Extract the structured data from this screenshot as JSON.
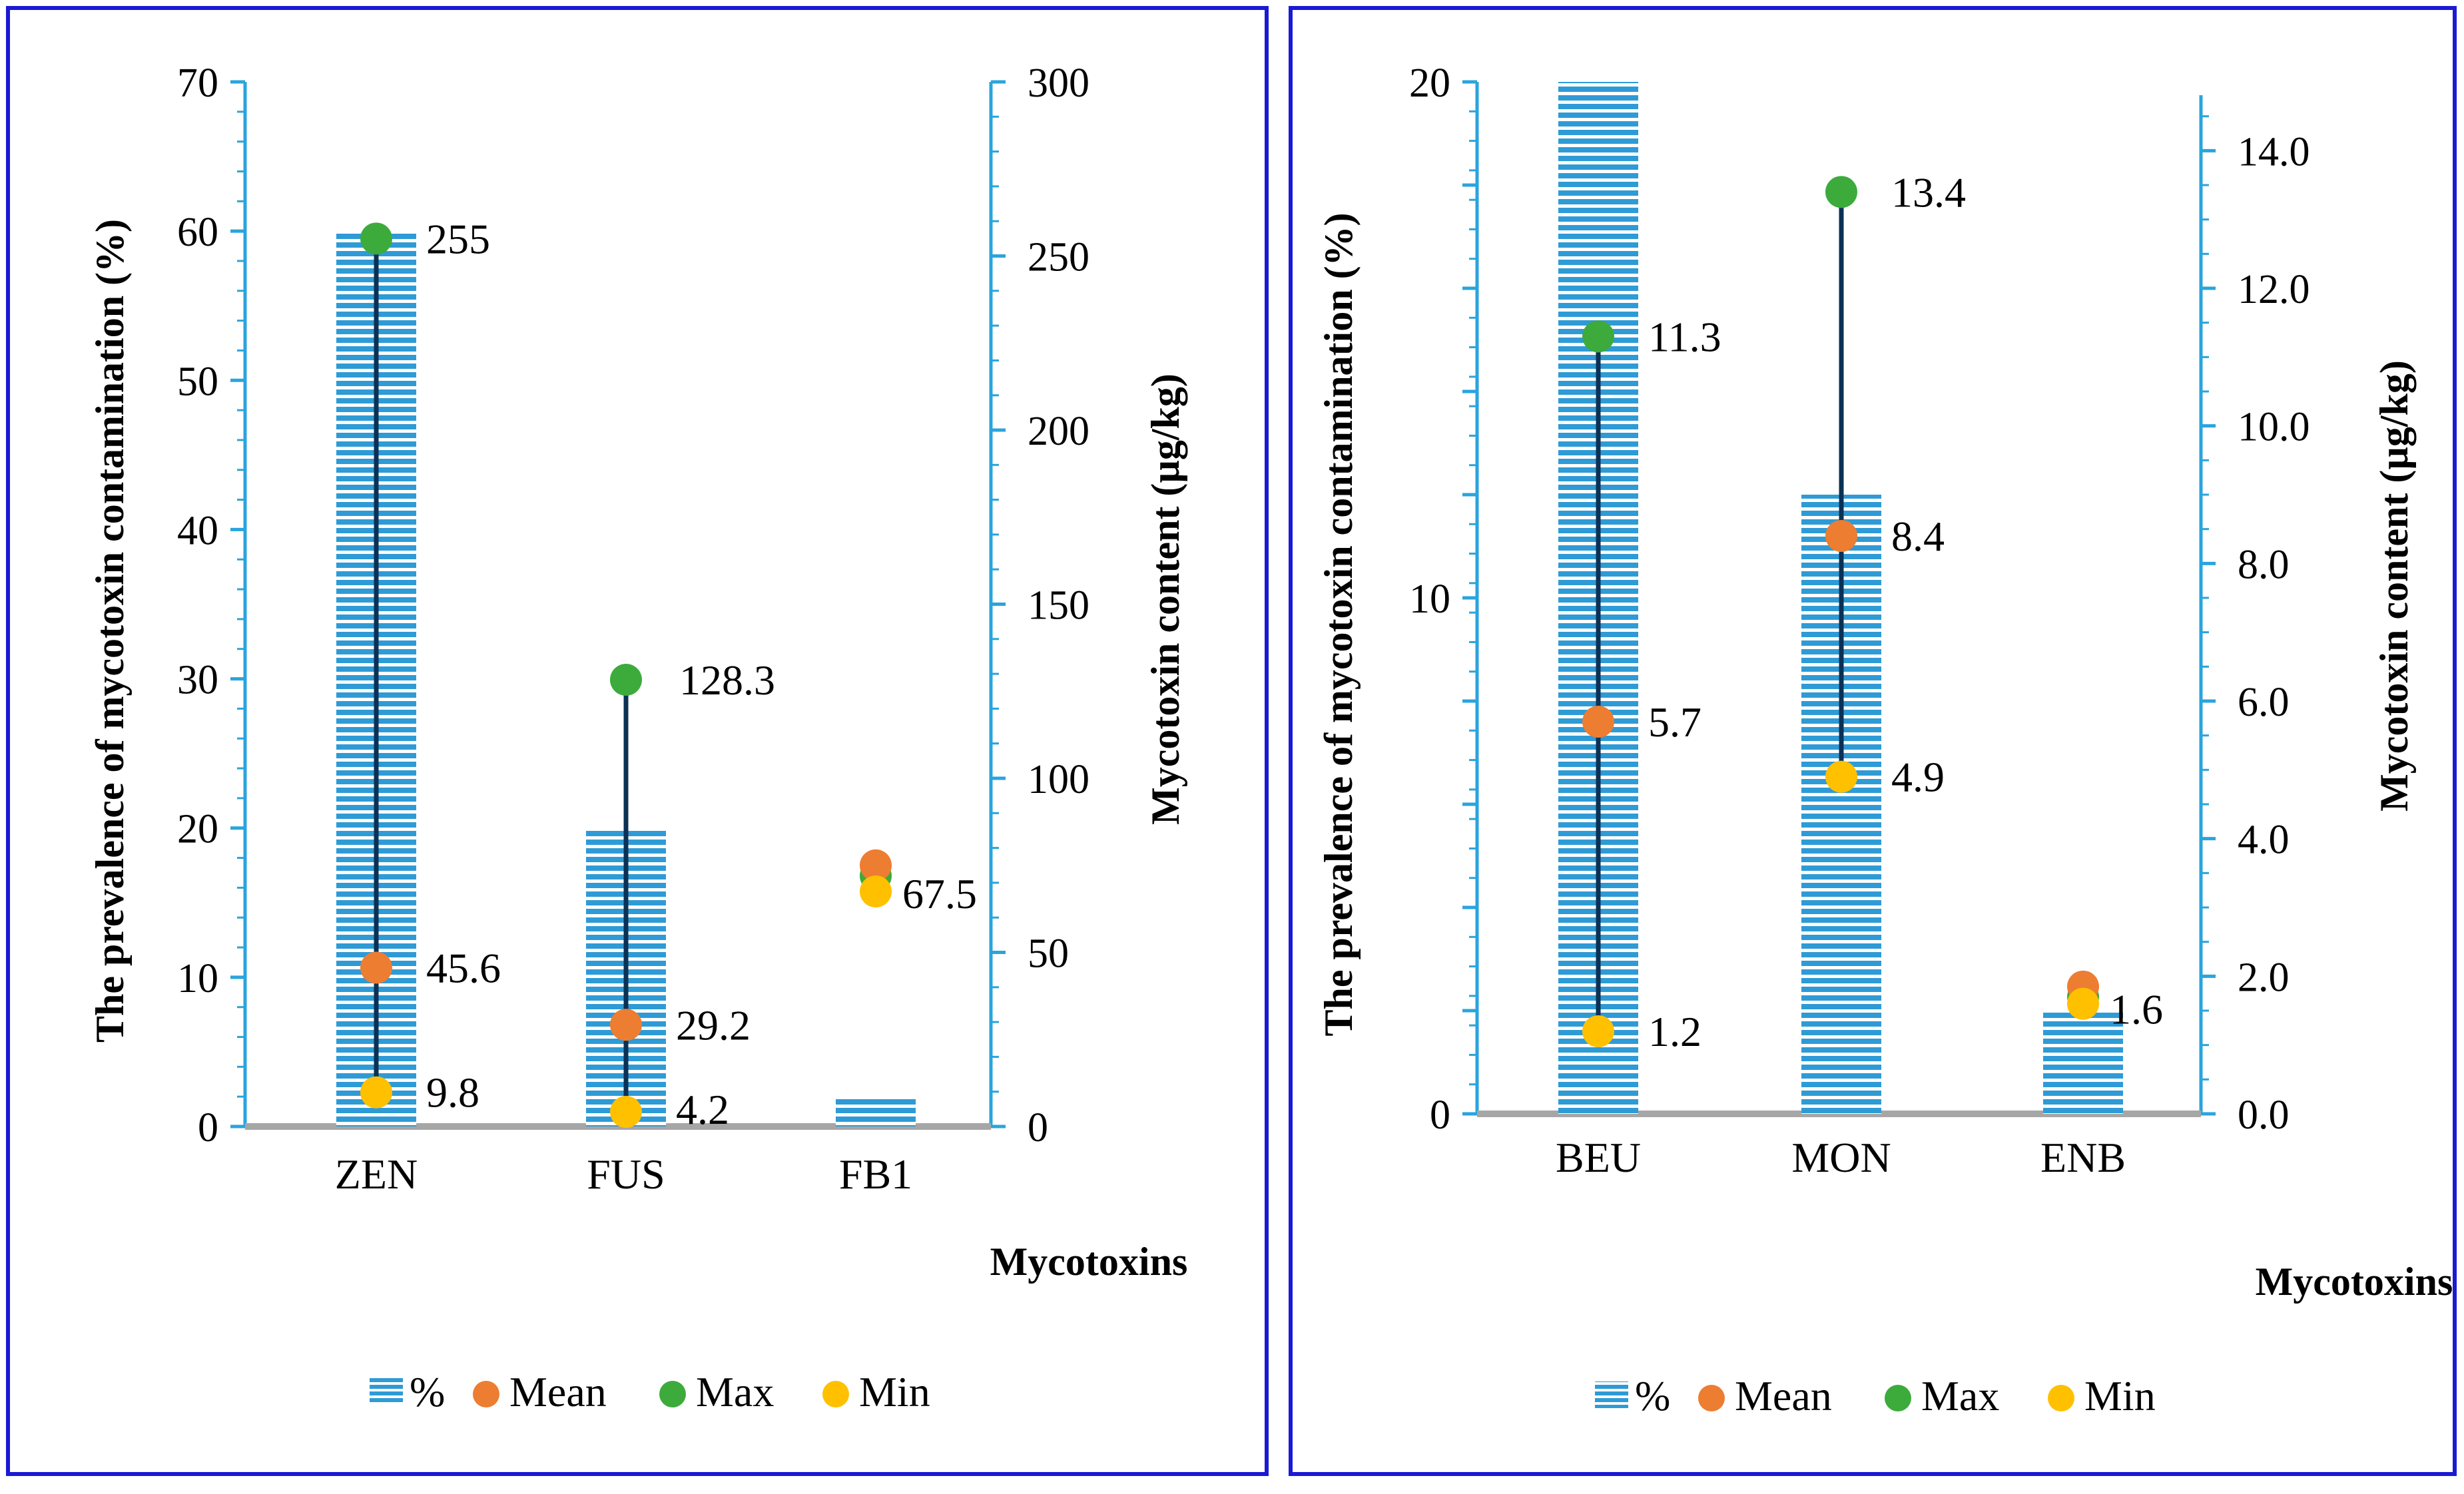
{
  "colors": {
    "frame": "#1a1ad4",
    "axis": "#2aa4dd",
    "baseline": "#a6a6a6",
    "bar": "#2e9bd6",
    "line": "#0b3155",
    "mean": "#ed7d31",
    "max": "#3cab3c",
    "min": "#ffc000"
  },
  "legend": {
    "bar": "%",
    "mean": "Mean",
    "max": "Max",
    "min": "Min"
  },
  "chart_data": [
    {
      "type": "bar",
      "categories": [
        "ZEN",
        "FUS",
        "FB1"
      ],
      "xlabel": "Mycotoxins",
      "ylabel": "The prevalence of mycotoxin contamination (%)",
      "ylim": [
        0,
        70
      ],
      "yticks": [
        0,
        10,
        20,
        30,
        40,
        50,
        60,
        70
      ],
      "ytick_labels": [
        "0",
        "10",
        "20",
        "30",
        "40",
        "50",
        "60",
        "70"
      ],
      "y2label": "Mycotoxin content (µg/kg)",
      "y2lim": [
        0,
        300
      ],
      "y2ticks": [
        0,
        50,
        100,
        150,
        200,
        250,
        300
      ],
      "y2tick_labels": [
        "0",
        "50",
        "100",
        "150",
        "200",
        "250",
        "300"
      ],
      "series": [
        {
          "name": "%",
          "axis": "left",
          "values": [
            60,
            20,
            2
          ]
        },
        {
          "name": "Mean",
          "axis": "right",
          "values": [
            45.6,
            29.2,
            75
          ]
        },
        {
          "name": "Max",
          "axis": "right",
          "values": [
            255,
            128.3,
            72
          ]
        },
        {
          "name": "Min",
          "axis": "right",
          "values": [
            9.8,
            4.2,
            67.5
          ]
        }
      ],
      "labels": [
        {
          "category": "ZEN",
          "value": 255,
          "text": "255"
        },
        {
          "category": "ZEN",
          "value": 45.6,
          "text": "45.6"
        },
        {
          "category": "ZEN",
          "value": 9.8,
          "text": "9.8"
        },
        {
          "category": "FUS",
          "value": 128.3,
          "text": "128.3"
        },
        {
          "category": "FUS",
          "value": 29.2,
          "text": "29.2"
        },
        {
          "category": "FUS",
          "value": 4.2,
          "text": "4.2"
        },
        {
          "category": "FB1",
          "value": 67.5,
          "text": "67.5"
        }
      ]
    },
    {
      "type": "bar",
      "categories": [
        "BEU",
        "MON",
        "ENB"
      ],
      "xlabel": "Mycotoxins",
      "ylabel": "The prevalence of mycotoxin contamination (%)",
      "ylim": [
        0,
        20
      ],
      "yticks": [
        0,
        2,
        4,
        6,
        8,
        10,
        12,
        14,
        16,
        18,
        20
      ],
      "ytick_labels": [
        "0",
        "",
        "",
        "",
        "",
        "10",
        "",
        "",
        "",
        "",
        "20"
      ],
      "y2label": "Mycotoxin content (µg/kg)",
      "y2lim": [
        0,
        15
      ],
      "y2ticks": [
        0,
        2,
        4,
        6,
        8,
        10,
        12,
        14
      ],
      "y2tick_labels": [
        "0.0",
        "2.0",
        "4.0",
        "6.0",
        "8.0",
        "10.0",
        "12.0",
        "14.0"
      ],
      "series": [
        {
          "name": "%",
          "axis": "left",
          "values": [
            20,
            12,
            2
          ]
        },
        {
          "name": "Mean",
          "axis": "right",
          "values": [
            5.7,
            8.4,
            1.85
          ]
        },
        {
          "name": "Max",
          "axis": "right",
          "values": [
            11.3,
            13.4,
            1.7
          ]
        },
        {
          "name": "Min",
          "axis": "right",
          "values": [
            1.2,
            4.9,
            1.6
          ]
        }
      ],
      "labels": [
        {
          "category": "BEU",
          "value": 11.3,
          "text": "11.3"
        },
        {
          "category": "BEU",
          "value": 5.7,
          "text": "5.7"
        },
        {
          "category": "BEU",
          "value": 1.2,
          "text": "1.2"
        },
        {
          "category": "MON",
          "value": 13.4,
          "text": "13.4"
        },
        {
          "category": "MON",
          "value": 8.4,
          "text": "8.4"
        },
        {
          "category": "MON",
          "value": 4.9,
          "text": "4.9"
        },
        {
          "category": "ENB",
          "value": 1.6,
          "text": "1.6"
        }
      ]
    }
  ]
}
